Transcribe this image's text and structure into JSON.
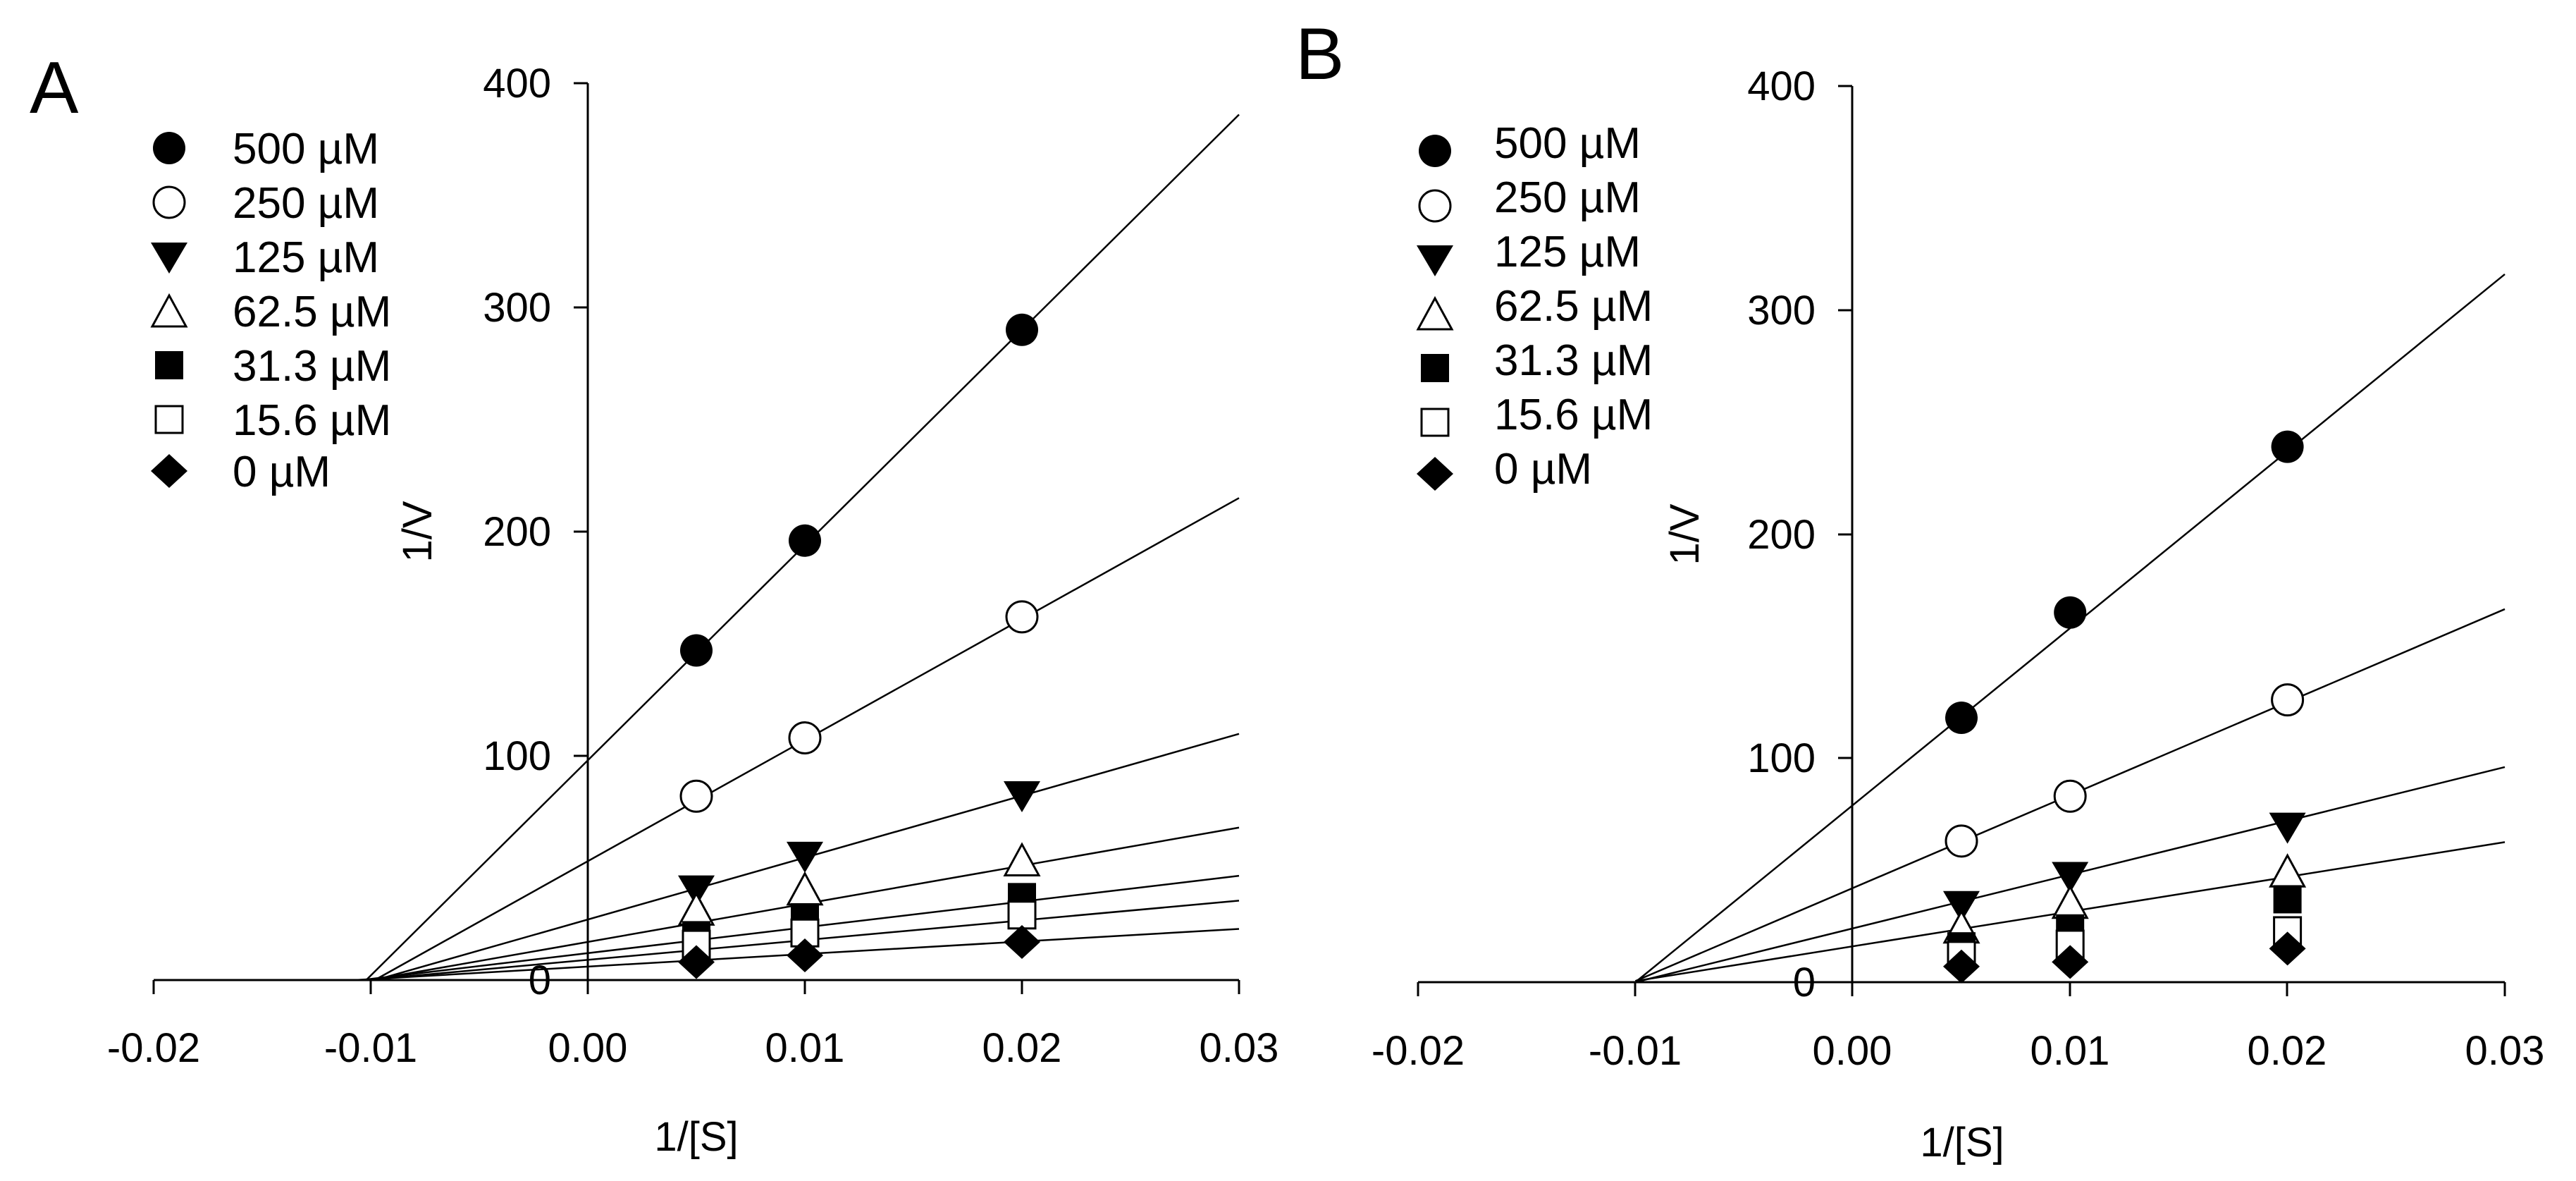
{
  "chart_data": [
    {
      "panel": "A",
      "type": "scatter",
      "xlabel": "1/[S]",
      "ylabel": "1/V",
      "xlim": [
        -0.02,
        0.03
      ],
      "ylim": [
        0,
        400
      ],
      "xticks": [
        -0.02,
        -0.01,
        0.0,
        0.01,
        0.02,
        0.03
      ],
      "xtick_labels": [
        "-0.02",
        "-0.01",
        "0.00",
        "0.01",
        "0.02",
        "0.03"
      ],
      "yticks": [
        0,
        100,
        200,
        300,
        400
      ],
      "ytick_labels": [
        "0",
        "100",
        "200",
        "300",
        "400"
      ],
      "legend_position": "top-left",
      "series": [
        {
          "name": "500 µM",
          "marker": "circle-filled",
          "x": [
            0.005,
            0.01,
            0.02
          ],
          "y": [
            147,
            196,
            290
          ],
          "fit": {
            "slope": 9600,
            "intercept": 98,
            "x_start": -0.0102
          }
        },
        {
          "name": "250 µM",
          "marker": "circle-open",
          "x": [
            0.005,
            0.01,
            0.02
          ],
          "y": [
            82,
            108,
            162
          ],
          "fit": {
            "slope": 5400,
            "intercept": 53,
            "x_start": -0.0098
          }
        },
        {
          "name": "125 µM",
          "marker": "triangle-down-filled",
          "x": [
            0.005,
            0.01,
            0.02
          ],
          "y": [
            41,
            56,
            83
          ],
          "fit": {
            "slope": 2760,
            "intercept": 27,
            "x_start": -0.0098
          }
        },
        {
          "name": "62.5 µM",
          "marker": "triangle-up-open",
          "x": [
            0.005,
            0.01,
            0.02
          ],
          "y": [
            31,
            40,
            53
          ],
          "fit": {
            "slope": 1700,
            "intercept": 17,
            "x_start": -0.01
          }
        },
        {
          "name": "31.3 µM",
          "marker": "square-filled",
          "x": [
            0.005,
            0.01,
            0.02
          ],
          "y": [
            20,
            28,
            37
          ],
          "fit": {
            "slope": 1150,
            "intercept": 12,
            "x_start": -0.0104
          }
        },
        {
          "name": "15.6 µM",
          "marker": "square-open",
          "x": [
            0.005,
            0.01,
            0.02
          ],
          "y": [
            16,
            21,
            29
          ],
          "fit": {
            "slope": 880,
            "intercept": 9,
            "x_start": -0.0102
          }
        },
        {
          "name": "0 µM",
          "marker": "diamond-filled",
          "x": [
            0.005,
            0.01,
            0.02
          ],
          "y": [
            8,
            11,
            17
          ],
          "fit": {
            "slope": 560,
            "intercept": 6,
            "x_start": -0.0107
          }
        }
      ]
    },
    {
      "panel": "B",
      "type": "scatter",
      "xlabel": "1/[S]",
      "ylabel": "1/V",
      "xlim": [
        -0.02,
        0.03
      ],
      "ylim": [
        0,
        400
      ],
      "xticks": [
        -0.02,
        -0.01,
        0.0,
        0.01,
        0.02,
        0.03
      ],
      "xtick_labels": [
        "-0.02",
        "-0.01",
        "0.00",
        "0.01",
        "0.02",
        "0.03"
      ],
      "yticks": [
        0,
        100,
        200,
        300,
        400
      ],
      "ytick_labels": [
        "0",
        "100",
        "200",
        "300",
        "400"
      ],
      "legend_position": "top-left",
      "series": [
        {
          "name": "500 µM",
          "marker": "circle-filled",
          "x": [
            0.005,
            0.01,
            0.02
          ],
          "y": [
            118,
            165,
            239
          ],
          "fit": {
            "slope": 7900,
            "intercept": 79,
            "x_start": -0.01
          }
        },
        {
          "name": "250 µM",
          "marker": "circle-open",
          "x": [
            0.005,
            0.01,
            0.02
          ],
          "y": [
            63,
            83,
            126
          ],
          "fit": {
            "slope": 4150,
            "intercept": 42,
            "x_start": -0.01
          }
        },
        {
          "name": "125 µM",
          "marker": "triangle-down-filled",
          "x": [
            0.005,
            0.01,
            0.02
          ],
          "y": [
            35,
            48,
            70
          ],
          "fit": {
            "slope": 2400,
            "intercept": 24,
            "x_start": -0.01
          }
        },
        {
          "name": "62.5 µM",
          "marker": "triangle-up-open",
          "x": [
            0.005,
            0.01,
            0.02
          ],
          "y": [
            24,
            35,
            49
          ],
          "fit": {
            "slope": 1550,
            "intercept": 16,
            "x_start": -0.01
          }
        },
        {
          "name": "31.3 µM",
          "marker": "square-filled",
          "x": [
            0.005,
            0.01,
            0.02
          ],
          "y": [
            16,
            24,
            37
          ]
        },
        {
          "name": "15.6 µM",
          "marker": "square-open",
          "x": [
            0.005,
            0.01,
            0.02
          ],
          "y": [
            12,
            17,
            23
          ]
        },
        {
          "name": "0 µM",
          "marker": "diamond-filled",
          "x": [
            0.005,
            0.01,
            0.02
          ],
          "y": [
            7,
            9,
            15
          ]
        }
      ]
    }
  ]
}
